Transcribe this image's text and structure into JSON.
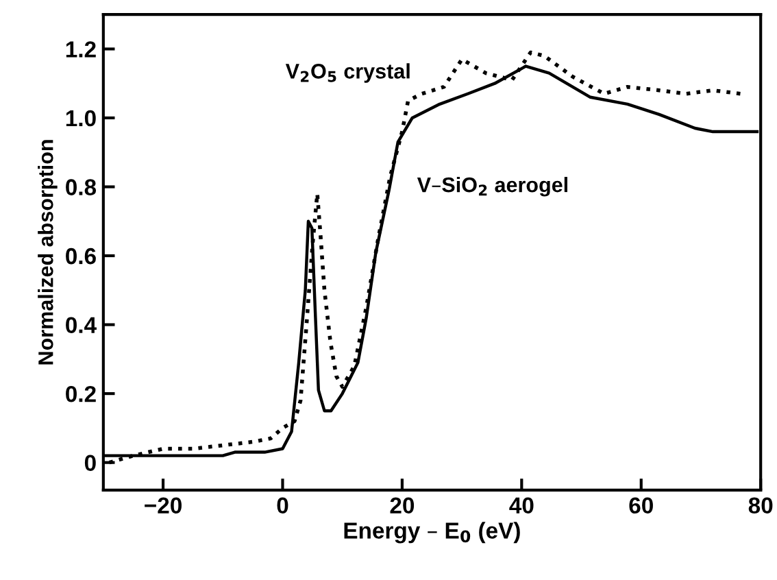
{
  "chart_data": {
    "type": "line",
    "xlabel": "Energy – E$_{0}$ (eV)",
    "ylabel": "Normalized absorption",
    "xlim": [
      -30,
      80
    ],
    "ylim": [
      -0.08,
      1.3
    ],
    "xticks": [
      {
        "value": -20,
        "label": "−20"
      },
      0,
      20,
      40,
      60,
      80
    ],
    "yticks": [
      0,
      0.2,
      0.4,
      0.6,
      0.8,
      {
        "value": 1.0,
        "label": "1.0"
      },
      1.2
    ],
    "grid": false,
    "marker": "none",
    "series": [
      {
        "name": "V$_{2}$O$_{5}$ crystal",
        "color": "#000000",
        "line_style": "dotted",
        "x": [
          -29,
          -25,
          -20,
          -15,
          -10,
          -5,
          -2,
          0,
          2,
          3,
          4,
          5,
          5.8,
          6.3,
          7,
          8,
          9,
          10,
          12,
          14,
          16,
          18,
          20,
          21,
          23.3,
          27,
          30,
          34,
          38.4,
          41.5,
          43.8,
          48.5,
          53.8,
          57.7,
          63,
          67.5,
          72,
          76.7
        ],
        "values": [
          0.0,
          0.02,
          0.04,
          0.04,
          0.05,
          0.06,
          0.07,
          0.1,
          0.12,
          0.18,
          0.4,
          0.63,
          0.78,
          0.67,
          0.5,
          0.35,
          0.25,
          0.22,
          0.28,
          0.45,
          0.65,
          0.83,
          0.96,
          1.05,
          1.07,
          1.09,
          1.17,
          1.13,
          1.11,
          1.19,
          1.18,
          1.12,
          1.07,
          1.09,
          1.08,
          1.07,
          1.08,
          1.07
        ]
      },
      {
        "name": "V–SiO$_{2}$ aerogel",
        "color": "#000000",
        "line_style": "solid",
        "x": [
          -30,
          -10,
          -8,
          -3,
          0,
          1.5,
          2.7,
          3.8,
          4.3,
          4.9,
          5.5,
          6,
          7,
          8.1,
          10,
          12.6,
          14,
          15.6,
          17.8,
          19.3,
          21.7,
          26.3,
          31,
          35.5,
          40.7,
          44.6,
          51.5,
          57.7,
          63,
          69,
          72,
          79.4
        ],
        "values": [
          0.02,
          0.02,
          0.03,
          0.03,
          0.04,
          0.09,
          0.29,
          0.5,
          0.7,
          0.68,
          0.42,
          0.21,
          0.15,
          0.15,
          0.2,
          0.29,
          0.42,
          0.61,
          0.79,
          0.93,
          1.0,
          1.04,
          1.07,
          1.1,
          1.15,
          1.13,
          1.06,
          1.04,
          1.01,
          0.97,
          0.96,
          0.96
        ]
      }
    ]
  }
}
